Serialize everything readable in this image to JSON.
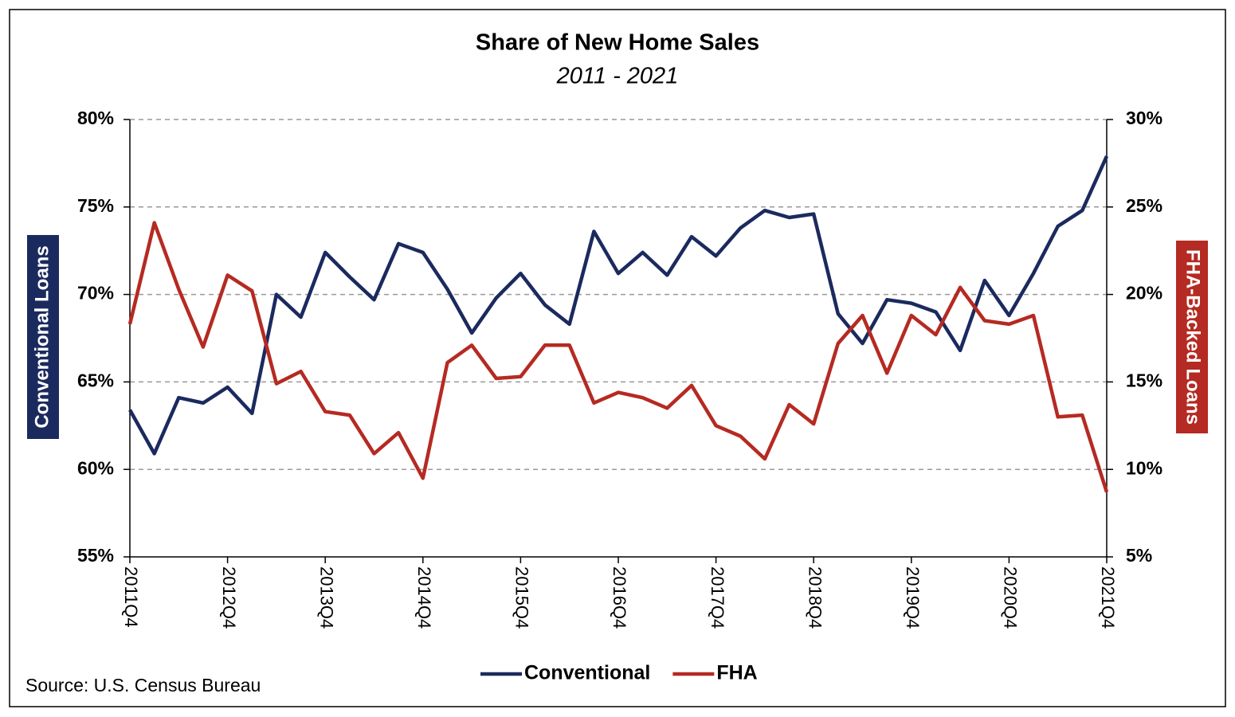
{
  "chart_data": {
    "type": "line",
    "title": "Share of New Home Sales",
    "subtitle": "2011 - 2021",
    "y_label": "Conventional Loans",
    "y2_label": "FHA-Backed Loans",
    "source": "Source: U.S. Census Bureau",
    "categories": [
      "2011Q4",
      null,
      null,
      null,
      "2012Q4",
      null,
      null,
      null,
      "2013Q4",
      null,
      null,
      null,
      "2014Q4",
      null,
      null,
      null,
      "2015Q4",
      null,
      null,
      null,
      "2016Q4",
      null,
      null,
      null,
      "2017Q4",
      null,
      null,
      null,
      "2018Q4",
      null,
      null,
      null,
      "2019Q4",
      null,
      null,
      null,
      "2020Q4",
      null,
      null,
      null,
      "2021Q4"
    ],
    "series": [
      {
        "name": "Conventional",
        "color": "#1b2a5e",
        "axis": "y",
        "values": [
          63.4,
          60.9,
          64.1,
          63.8,
          64.7,
          63.2,
          70.0,
          68.7,
          72.4,
          71.0,
          69.7,
          72.9,
          72.4,
          70.3,
          67.8,
          69.8,
          71.2,
          69.4,
          68.3,
          73.6,
          71.2,
          72.4,
          71.1,
          73.3,
          72.2,
          73.8,
          74.8,
          74.4,
          74.6,
          68.9,
          67.2,
          69.7,
          69.5,
          69.0,
          66.8,
          70.8,
          68.8,
          71.2,
          73.9,
          74.8,
          77.9
        ]
      },
      {
        "name": "FHA",
        "color": "#b52a22",
        "axis": "y2",
        "values": [
          18.3,
          24.1,
          20.3,
          17.0,
          21.1,
          20.2,
          14.9,
          15.6,
          13.3,
          13.1,
          10.9,
          12.1,
          9.5,
          16.1,
          17.1,
          15.2,
          15.3,
          17.1,
          17.1,
          13.8,
          14.4,
          14.1,
          13.5,
          14.8,
          12.5,
          11.9,
          10.6,
          13.7,
          12.6,
          17.2,
          18.8,
          15.5,
          18.8,
          17.7,
          20.4,
          18.5,
          18.3,
          18.8,
          13.0,
          13.1,
          8.7
        ]
      }
    ],
    "ylim": [
      55,
      80
    ],
    "yticks": [
      {
        "value": 55,
        "label": "55%"
      },
      {
        "value": 60,
        "label": "60%"
      },
      {
        "value": 65,
        "label": "65%"
      },
      {
        "value": 70,
        "label": "70%"
      },
      {
        "value": 75,
        "label": "75%"
      },
      {
        "value": 80,
        "label": "80%"
      }
    ],
    "y2lim": [
      5,
      30
    ],
    "y2ticks": [
      {
        "value": 5,
        "label": "5%"
      },
      {
        "value": 10,
        "label": "10%"
      },
      {
        "value": 15,
        "label": "15%"
      },
      {
        "value": 20,
        "label": "20%"
      },
      {
        "value": 25,
        "label": "25%"
      },
      {
        "value": 30,
        "label": "30%"
      }
    ],
    "grid": true,
    "legend": "bottom"
  }
}
